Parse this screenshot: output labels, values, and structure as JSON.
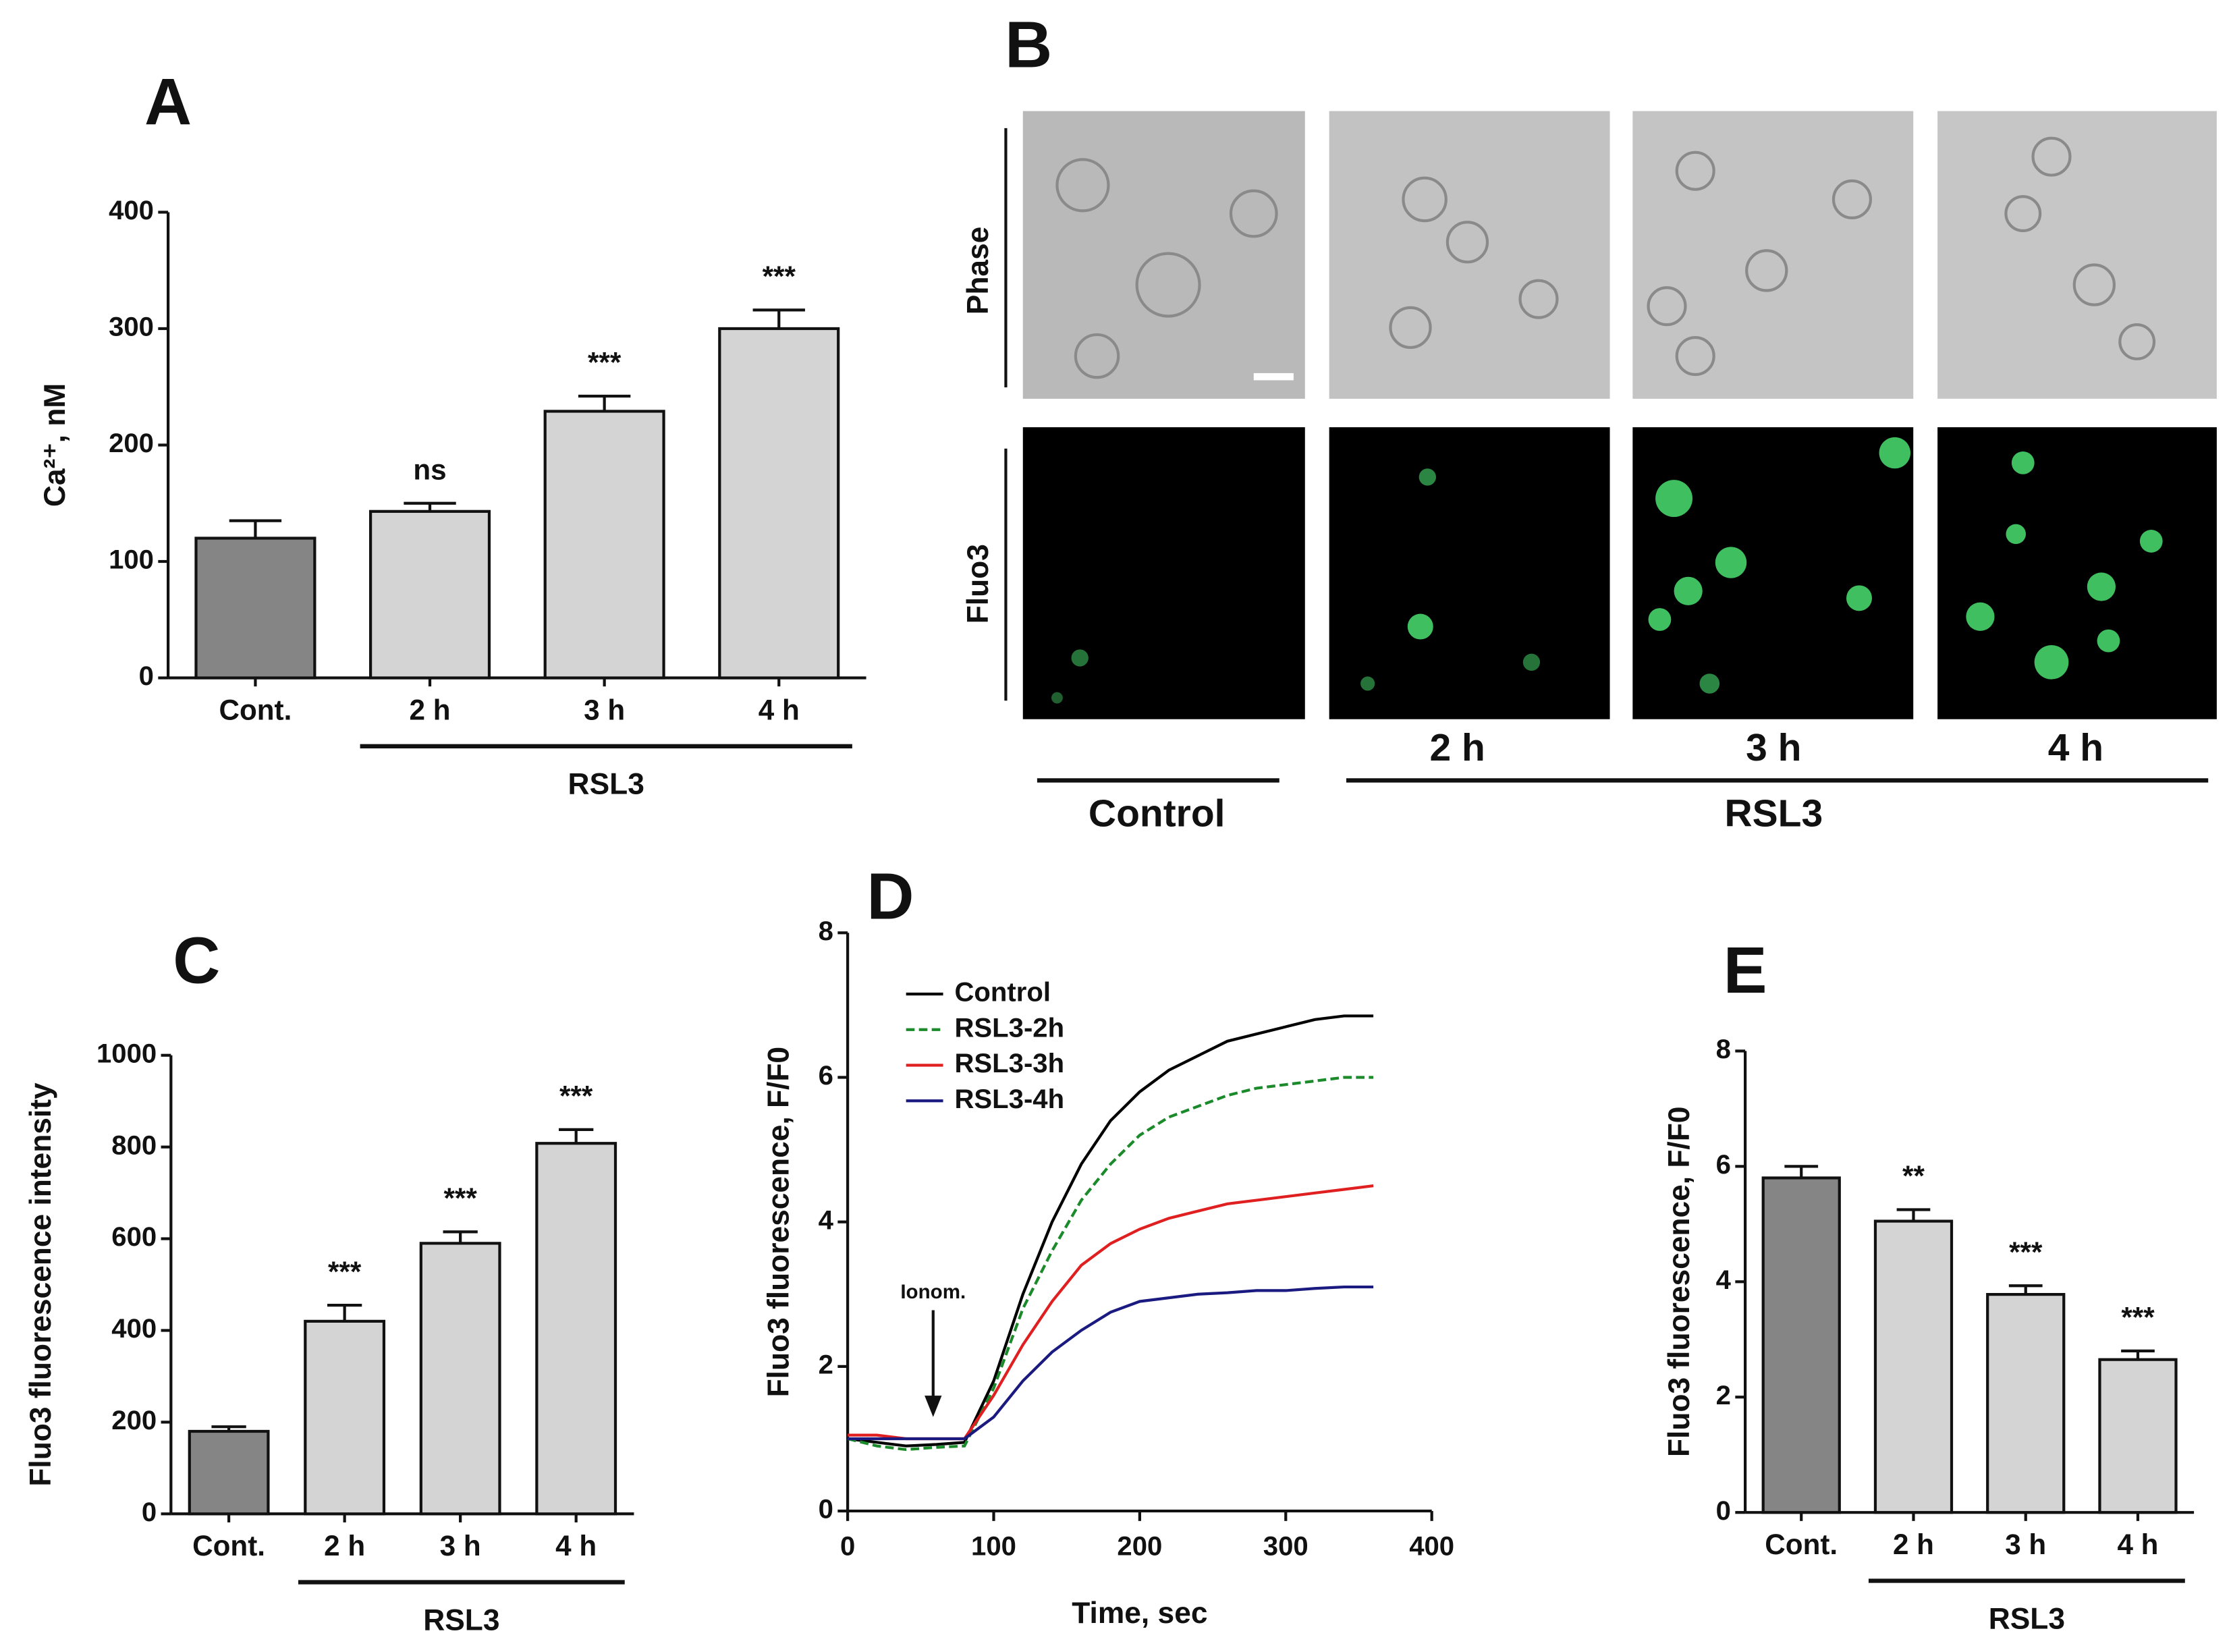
{
  "chart_data": [
    {
      "type": "bar",
      "panel": "A",
      "categories": [
        "Cont.",
        "2 h",
        "3 h",
        "4 h"
      ],
      "values": [
        120,
        143,
        229,
        300
      ],
      "errors": [
        15,
        7,
        13,
        16
      ],
      "colors": [
        "#858585",
        "#d4d4d4",
        "#d4d4d4",
        "#d4d4d4"
      ],
      "annotations": [
        null,
        "ns",
        "***",
        "***"
      ],
      "group_label": "RSL3",
      "y_label": "Ca²⁺, nM",
      "ylim": [
        0,
        400
      ],
      "yticks": [
        0,
        100,
        200,
        300,
        400
      ]
    },
    {
      "type": "bar",
      "panel": "C",
      "categories": [
        "Cont.",
        "2 h",
        "3 h",
        "4 h"
      ],
      "values": [
        180,
        420,
        590,
        808
      ],
      "errors": [
        10,
        35,
        25,
        30
      ],
      "colors": [
        "#858585",
        "#d4d4d4",
        "#d4d4d4",
        "#d4d4d4"
      ],
      "annotations": [
        null,
        "***",
        "***",
        "***"
      ],
      "group_label": "RSL3",
      "y_label": "Fluo3 fluorescence intensity",
      "ylim": [
        0,
        1000
      ],
      "yticks": [
        0,
        200,
        400,
        600,
        800,
        1000
      ]
    },
    {
      "type": "line",
      "panel": "D",
      "x_label": "Time, sec",
      "y_label": "Fluo3 fluorescence, F/F0",
      "annotation": "Ionom.",
      "x": [
        0,
        20,
        40,
        60,
        80,
        100,
        120,
        140,
        160,
        180,
        200,
        220,
        240,
        260,
        280,
        300,
        320,
        340,
        360
      ],
      "series": [
        {
          "name": "Control",
          "color": "#000000",
          "dashed": false,
          "values": [
            1.0,
            0.95,
            0.9,
            0.92,
            0.95,
            1.8,
            3.0,
            4.0,
            4.8,
            5.4,
            5.8,
            6.1,
            6.3,
            6.5,
            6.6,
            6.7,
            6.8,
            6.85,
            6.85
          ]
        },
        {
          "name": "RSL3-2h",
          "color": "#1a8a2a",
          "dashed": true,
          "values": [
            1.0,
            0.9,
            0.85,
            0.88,
            0.9,
            1.7,
            2.8,
            3.6,
            4.3,
            4.8,
            5.2,
            5.45,
            5.6,
            5.75,
            5.85,
            5.9,
            5.95,
            6.0,
            6.0
          ]
        },
        {
          "name": "RSL3-3h",
          "color": "#e02020",
          "dashed": false,
          "values": [
            1.05,
            1.05,
            1.0,
            1.0,
            1.0,
            1.6,
            2.3,
            2.9,
            3.4,
            3.7,
            3.9,
            4.05,
            4.15,
            4.25,
            4.3,
            4.35,
            4.4,
            4.45,
            4.5
          ]
        },
        {
          "name": "RSL3-4h",
          "color": "#1a1a80",
          "dashed": false,
          "values": [
            1.0,
            1.0,
            1.0,
            1.0,
            1.0,
            1.3,
            1.8,
            2.2,
            2.5,
            2.75,
            2.9,
            2.95,
            3.0,
            3.02,
            3.05,
            3.05,
            3.08,
            3.1,
            3.1
          ]
        }
      ],
      "legend": "upper-left",
      "xlim": [
        0,
        400
      ],
      "xticks": [
        0,
        100,
        200,
        300,
        400
      ],
      "ylim": [
        0,
        8
      ],
      "yticks": [
        0,
        2,
        4,
        6,
        8
      ]
    },
    {
      "type": "bar",
      "panel": "E",
      "categories": [
        "Cont.",
        "2 h",
        "3 h",
        "4 h"
      ],
      "values": [
        5.8,
        5.05,
        3.78,
        2.65
      ],
      "errors": [
        0.2,
        0.2,
        0.15,
        0.15
      ],
      "colors": [
        "#858585",
        "#d4d4d4",
        "#d4d4d4",
        "#d4d4d4"
      ],
      "annotations": [
        null,
        "**",
        "***",
        "***"
      ],
      "group_label": "RSL3",
      "y_label": "Fluo3 fluorescence, F/F0",
      "ylim": [
        0,
        8
      ],
      "yticks": [
        0,
        2,
        4,
        6,
        8
      ]
    }
  ],
  "panel_b": {
    "panel": "B",
    "rows": [
      "Phase",
      "Fluo3"
    ],
    "columns": [
      "2 h",
      "3 h",
      "4 h"
    ],
    "control_label": "Control",
    "group_label": "RSL3"
  }
}
